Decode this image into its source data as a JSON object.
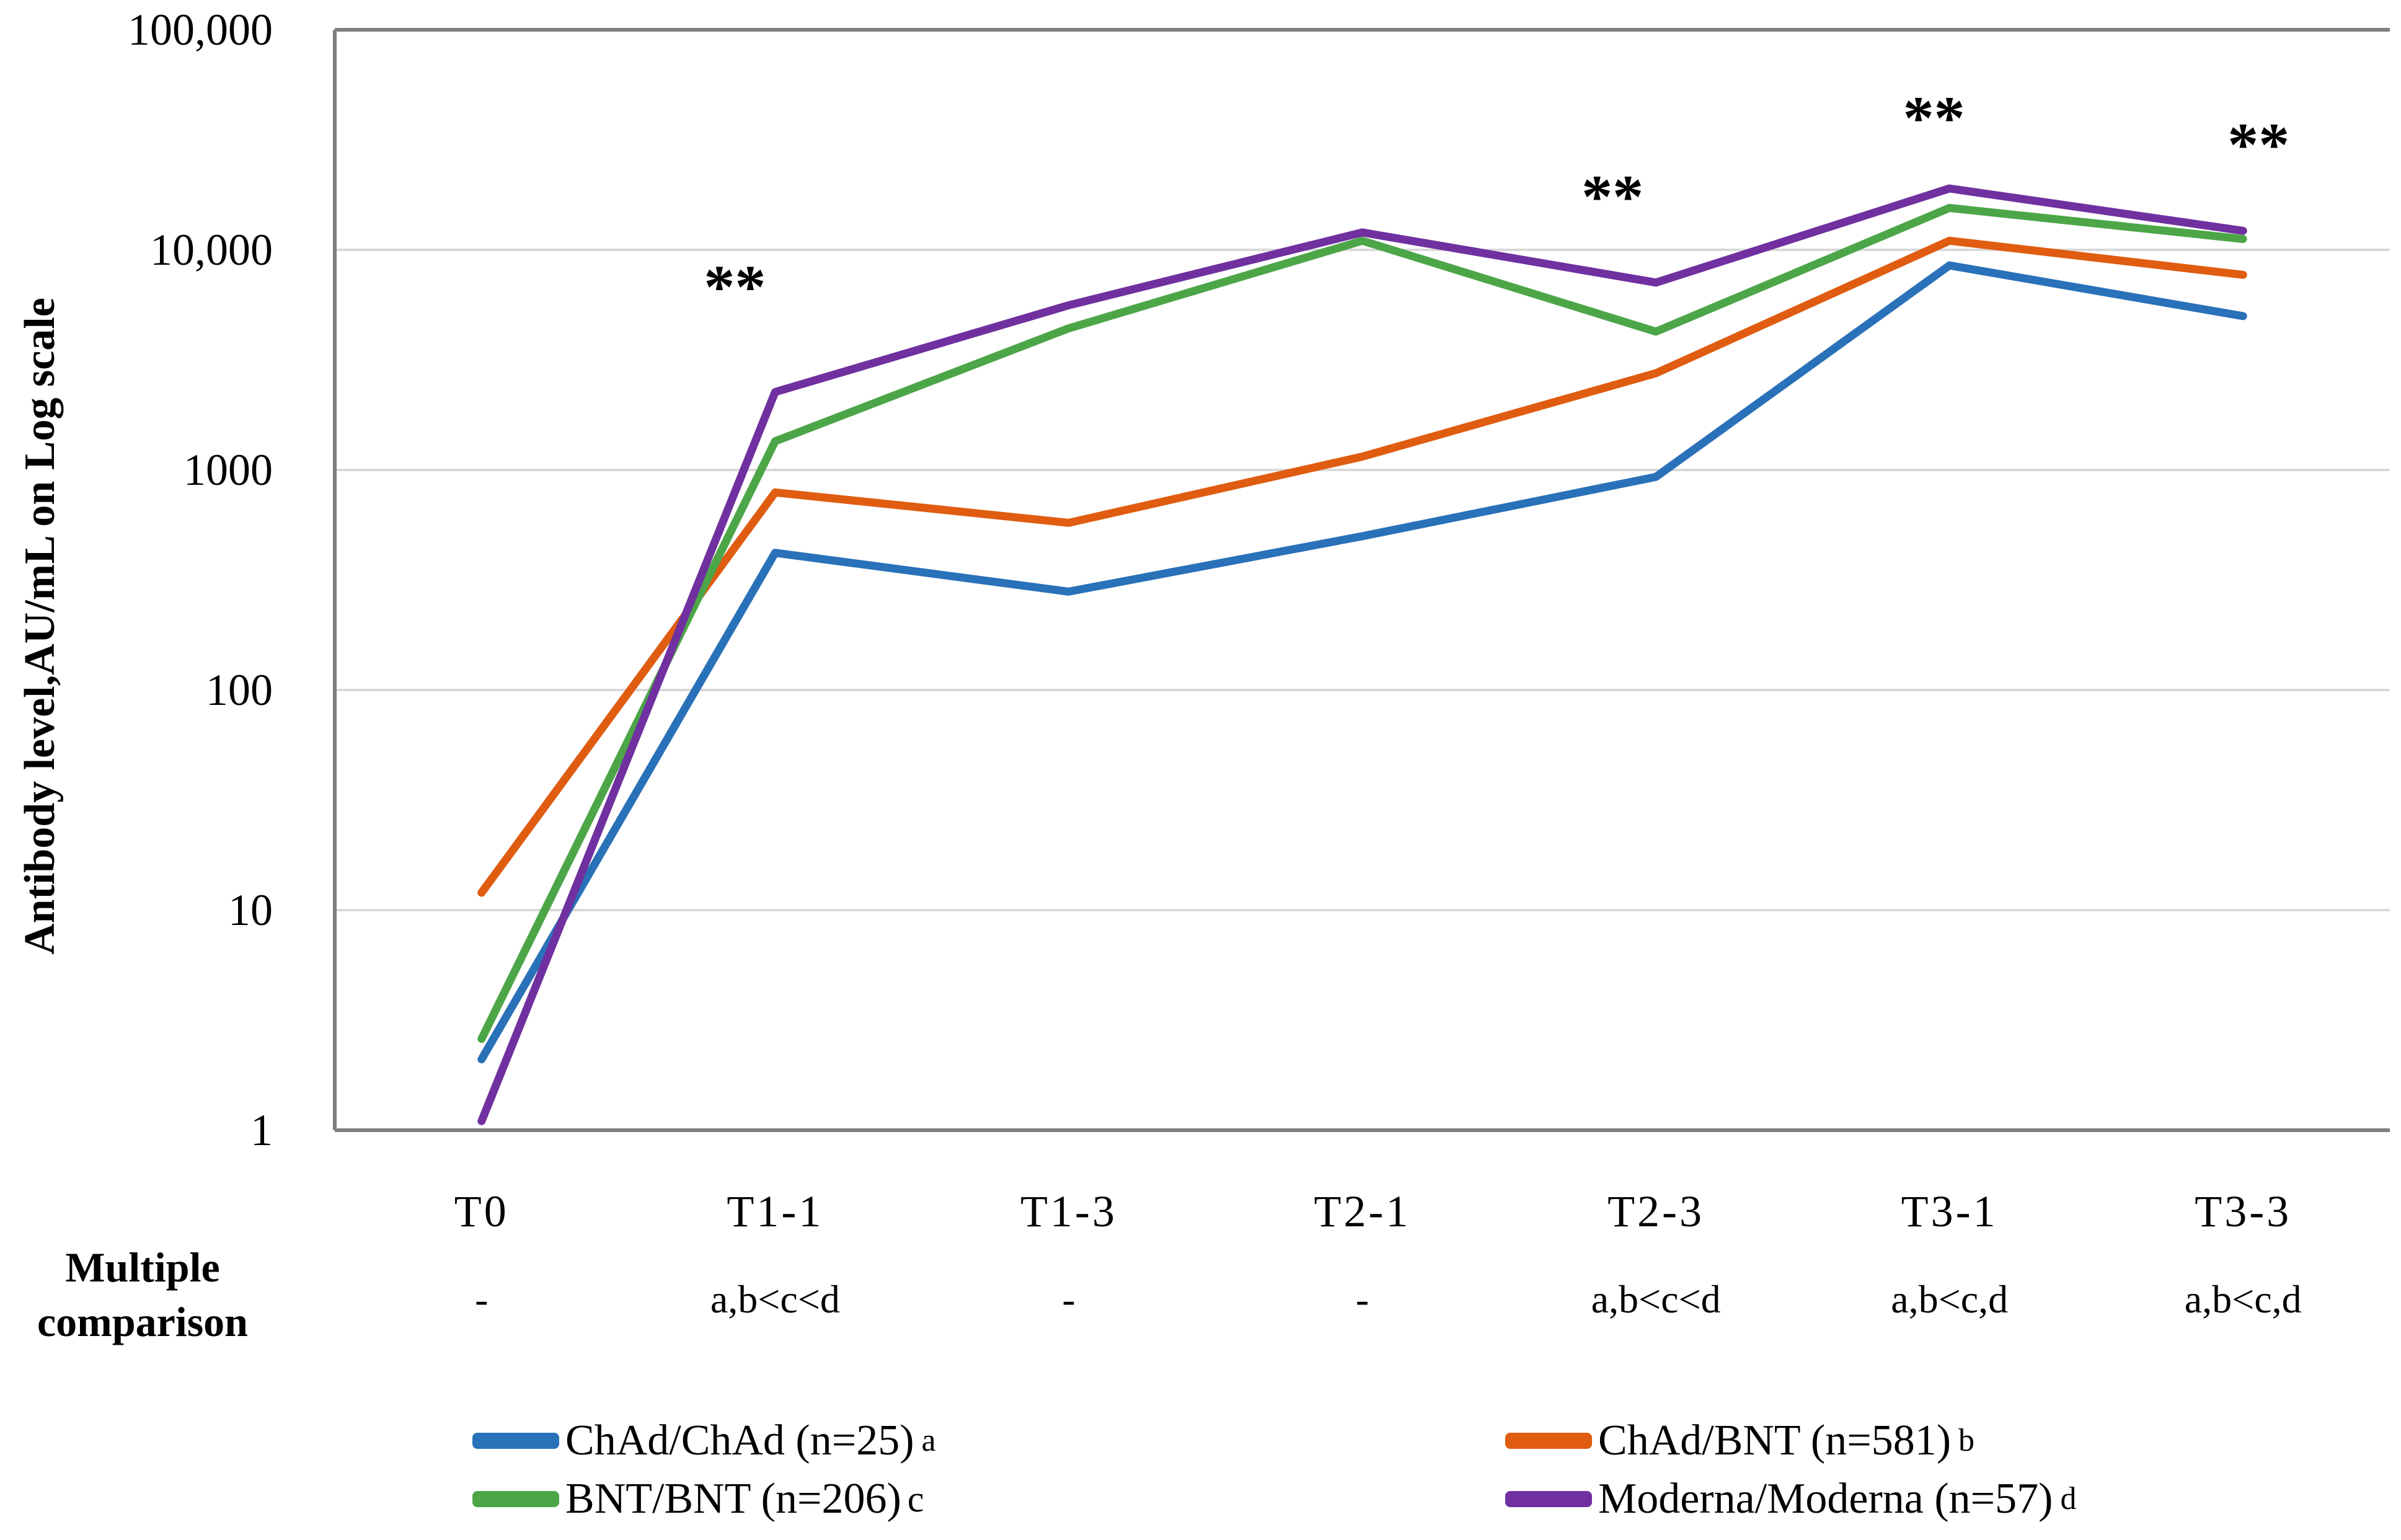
{
  "chart_data": {
    "type": "line",
    "title": "",
    "ylabel": "Antibody level,AU/mL on Log scale",
    "xlabel": "",
    "y_scale": "log10",
    "ylim": [
      1,
      100000
    ],
    "y_tick_labels": [
      "1",
      "10",
      "100",
      "1000",
      "10,000",
      "100,000"
    ],
    "grid": true,
    "legend_position": "bottom",
    "categories": [
      "T0",
      "T1-1",
      "T1-3",
      "T2-1",
      "T2-3",
      "T3-1",
      "T3-3"
    ],
    "series": [
      {
        "name": "ChAd/ChAd (n=25)",
        "suffix": "a",
        "suffix_superscript": true,
        "color": "#2971B8",
        "values": [
          2.1,
          420,
          280,
          500,
          930,
          8500,
          5000
        ]
      },
      {
        "name": "ChAd/BNT (n=581)",
        "suffix": "b",
        "suffix_superscript": true,
        "color": "#E05C10",
        "values": [
          12,
          790,
          575,
          1150,
          2750,
          11000,
          7700
        ]
      },
      {
        "name": "BNT/BNT (n=206)",
        "suffix": "c",
        "suffix_superscript": false,
        "color": "#4CA648",
        "values": [
          2.6,
          1350,
          4400,
          11000,
          4250,
          15500,
          11200
        ]
      },
      {
        "name": "Moderna/Moderna (n=57)",
        "suffix": "d",
        "suffix_superscript": true,
        "color": "#7030A0",
        "values": [
          1.1,
          2260,
          5600,
          12000,
          7100,
          19000,
          12200
        ]
      }
    ],
    "annotations": [
      {
        "text": "**",
        "category_index": 1,
        "value": 7000,
        "x_offset": -65
      },
      {
        "text": "**",
        "category_index": 4,
        "value": 18000,
        "x_offset": -70
      },
      {
        "text": "**",
        "category_index": 5,
        "value": 41000,
        "x_offset": -25
      },
      {
        "text": "**",
        "category_index": 6,
        "value": 31000,
        "x_offset": 25
      }
    ]
  },
  "comparison_row": {
    "label_line1": "Multiple",
    "label_line2": "comparison",
    "values": [
      "-",
      "a,b<c<d",
      "-",
      "-",
      "a,b<c<d",
      "a,b<c,d",
      "a,b<c,d"
    ]
  },
  "colors": {
    "axis": "#7F7F7F",
    "gridline": "#D9D9D9",
    "text": "#000000",
    "background": "#FFFFFF"
  }
}
